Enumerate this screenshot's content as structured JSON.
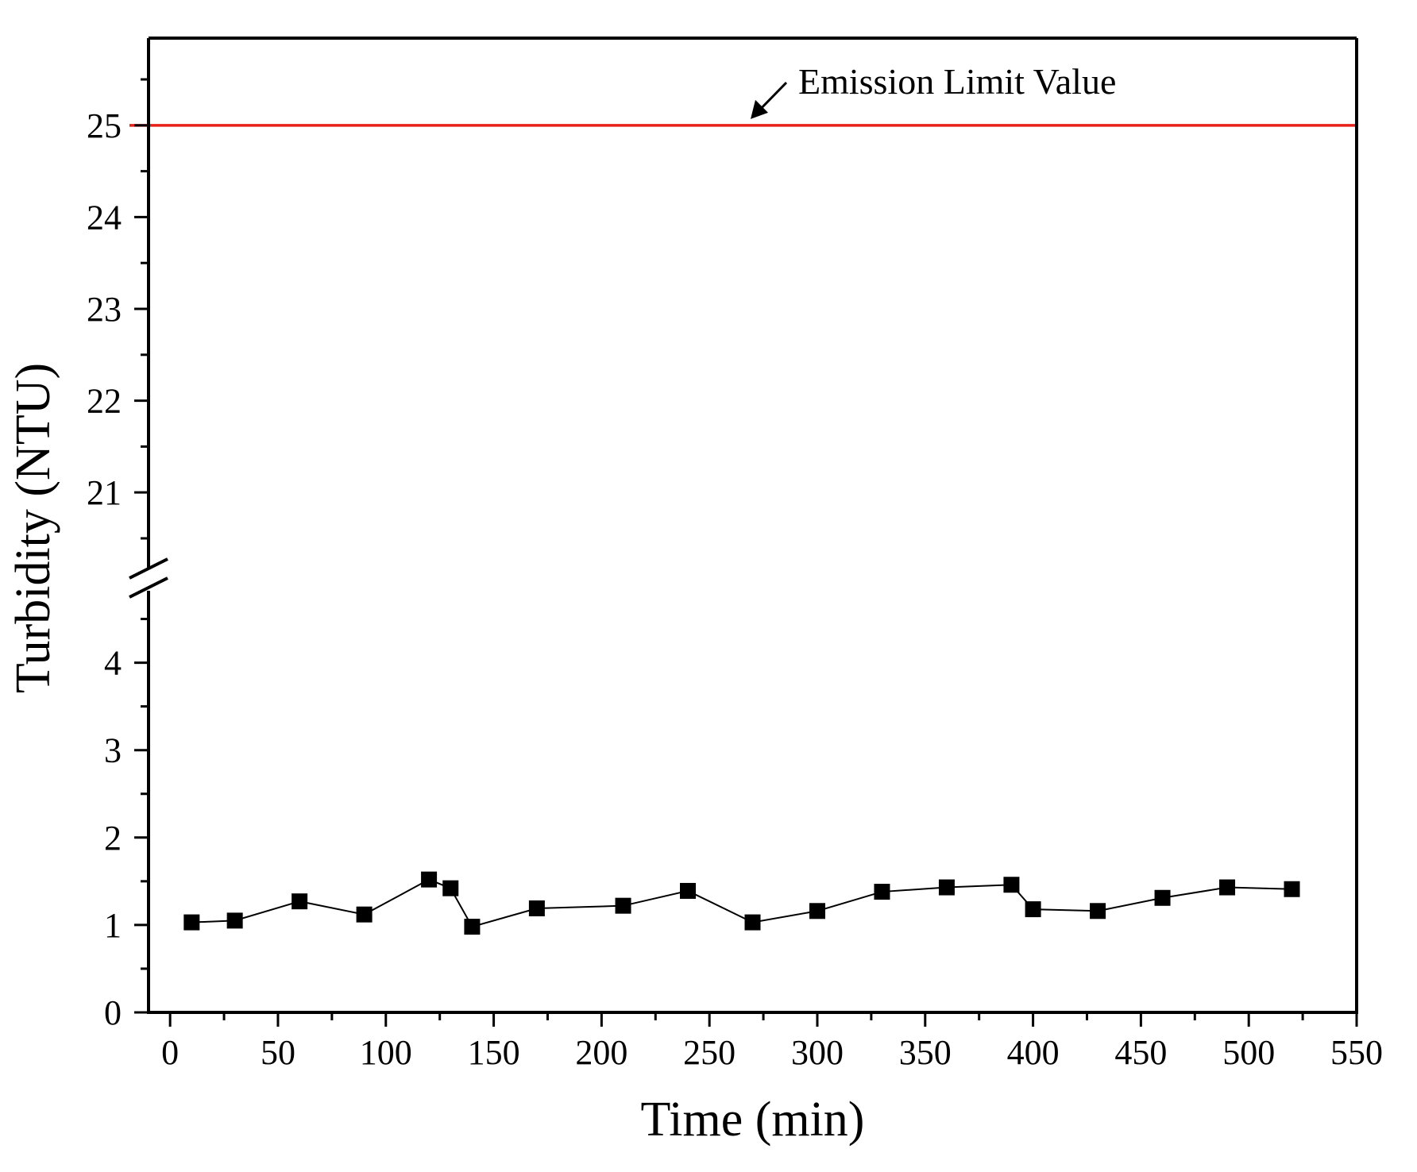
{
  "chart_data": {
    "type": "line",
    "title": "",
    "xlabel": "Time (min)",
    "ylabel": "Turbidity (NTU)",
    "xlim": [
      -10,
      550
    ],
    "x_ticks": [
      0,
      50,
      100,
      150,
      200,
      250,
      300,
      350,
      400,
      450,
      500,
      550
    ],
    "y_axis_break": {
      "lower_segment": [
        0,
        4.95
      ],
      "upper_segment": [
        20.05,
        25.95
      ]
    },
    "y_ticks_lower": [
      0,
      1,
      2,
      3,
      4
    ],
    "y_ticks_upper": [
      21,
      22,
      23,
      24,
      25
    ],
    "grid": false,
    "series": [
      {
        "name": "Turbidity",
        "marker": "square",
        "color": "#000000",
        "x": [
          10,
          30,
          60,
          90,
          120,
          130,
          140,
          170,
          210,
          240,
          270,
          300,
          330,
          360,
          390,
          400,
          430,
          460,
          490,
          520
        ],
        "y": [
          1.03,
          1.05,
          1.27,
          1.12,
          1.52,
          1.42,
          0.98,
          1.19,
          1.22,
          1.39,
          1.03,
          1.16,
          1.38,
          1.43,
          1.46,
          1.18,
          1.16,
          1.31,
          1.43,
          1.41
        ]
      }
    ],
    "reference_line": {
      "label": "Emission Limit Value",
      "y": 25,
      "color": "#e8201a"
    }
  }
}
